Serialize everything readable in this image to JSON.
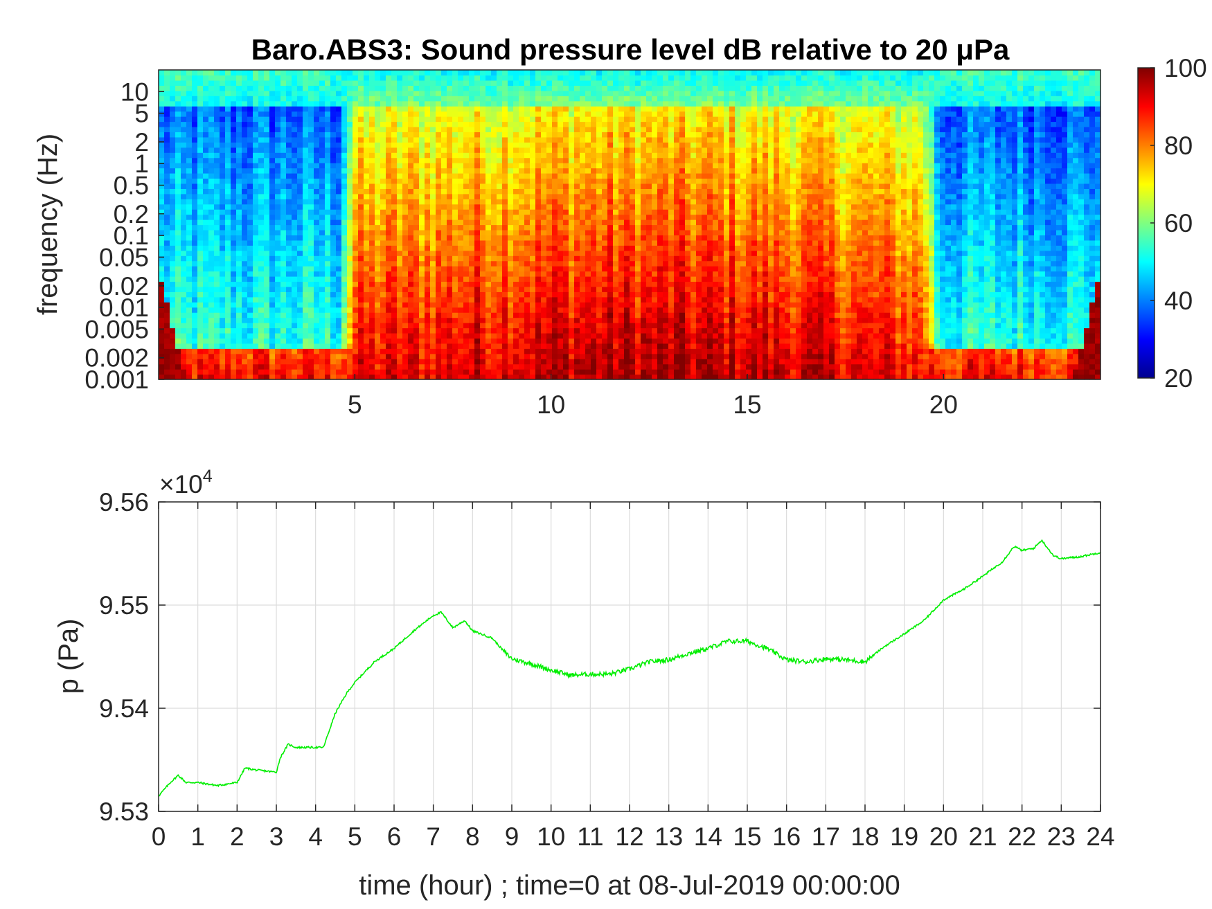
{
  "chart_data": [
    {
      "type": "heatmap",
      "title": "Baro.ABS3: Sound pressure level dB relative to 20 μPa",
      "xlabel": "",
      "ylabel": "frequency (Hz)",
      "xlim": [
        0,
        24
      ],
      "x_ticks": [
        "5",
        "10",
        "15",
        "20"
      ],
      "y_scale": "log",
      "ylim": [
        0.001,
        20
      ],
      "y_ticks": [
        "0.001",
        "0.002",
        "0.005",
        "0.01",
        "0.02",
        "0.05",
        "0.1",
        "0.2",
        "0.5",
        "1",
        "2",
        "5",
        "10"
      ],
      "colorbar": {
        "colormap": "jet",
        "range": [
          20,
          100
        ],
        "ticks": [
          "20",
          "40",
          "60",
          "80",
          "100"
        ]
      },
      "description_of_field": {
        "quiet_hours": [
          [
            0,
            5
          ],
          [
            19.5,
            24
          ]
        ],
        "active_hours": [
          5,
          19.5
        ],
        "active_level_db_low_freq": 90,
        "quiet_level_db_mid_freq": 45,
        "high_freq_level_db": 55
      },
      "grid": false
    },
    {
      "type": "line",
      "title": "",
      "xlabel": "time (hour) ; time=0 at 08-Jul-2019 00:00:00",
      "ylabel": "p (Pa)",
      "y_multiplier": "×10",
      "y_multiplier_exponent": "4",
      "xlim": [
        0,
        24
      ],
      "ylim": [
        9.53,
        9.56
      ],
      "x_ticks": [
        "0",
        "1",
        "2",
        "3",
        "4",
        "5",
        "6",
        "7",
        "8",
        "9",
        "10",
        "11",
        "12",
        "13",
        "14",
        "15",
        "16",
        "17",
        "18",
        "19",
        "20",
        "21",
        "22",
        "23",
        "24"
      ],
      "y_ticks": [
        "9.53",
        "9.54",
        "9.55",
        "9.56"
      ],
      "grid": true,
      "series": [
        {
          "color": "#00ee00",
          "x": [
            0,
            0.3,
            0.5,
            0.7,
            1,
            1.5,
            2,
            2.2,
            2.5,
            3,
            3.1,
            3.3,
            3.5,
            4,
            4.2,
            4.5,
            4.8,
            5,
            5.5,
            6,
            6.5,
            7,
            7.2,
            7.5,
            7.8,
            8,
            8.5,
            8.8,
            9,
            9.5,
            10,
            10.5,
            11,
            11.5,
            12,
            12.5,
            13,
            13.5,
            14,
            14.5,
            15,
            15.5,
            16,
            16.5,
            17,
            17.5,
            18,
            18.5,
            19,
            19.5,
            20,
            20.5,
            21,
            21.5,
            21.8,
            22,
            22.3,
            22.5,
            22.8,
            23,
            23.5,
            24
          ],
          "y": [
            9.5315,
            9.5328,
            9.5335,
            9.5328,
            9.5328,
            9.5325,
            9.5328,
            9.5342,
            9.534,
            9.5338,
            9.5352,
            9.5365,
            9.5362,
            9.5362,
            9.5362,
            9.5395,
            9.5415,
            9.5425,
            9.5445,
            9.5458,
            9.5475,
            9.549,
            9.5493,
            9.5478,
            9.5485,
            9.5475,
            9.5468,
            9.5455,
            9.5448,
            9.5443,
            9.5437,
            9.5432,
            9.5433,
            9.5433,
            9.5438,
            9.5445,
            9.5447,
            9.5453,
            9.5458,
            9.5465,
            9.5465,
            9.5458,
            9.5447,
            9.5445,
            9.5448,
            9.5447,
            9.5445,
            9.546,
            9.5472,
            9.5485,
            9.5505,
            9.5515,
            9.5528,
            9.5542,
            9.5557,
            9.5553,
            9.5555,
            9.5563,
            9.5548,
            9.5545,
            9.5547,
            9.5551
          ]
        }
      ]
    }
  ]
}
